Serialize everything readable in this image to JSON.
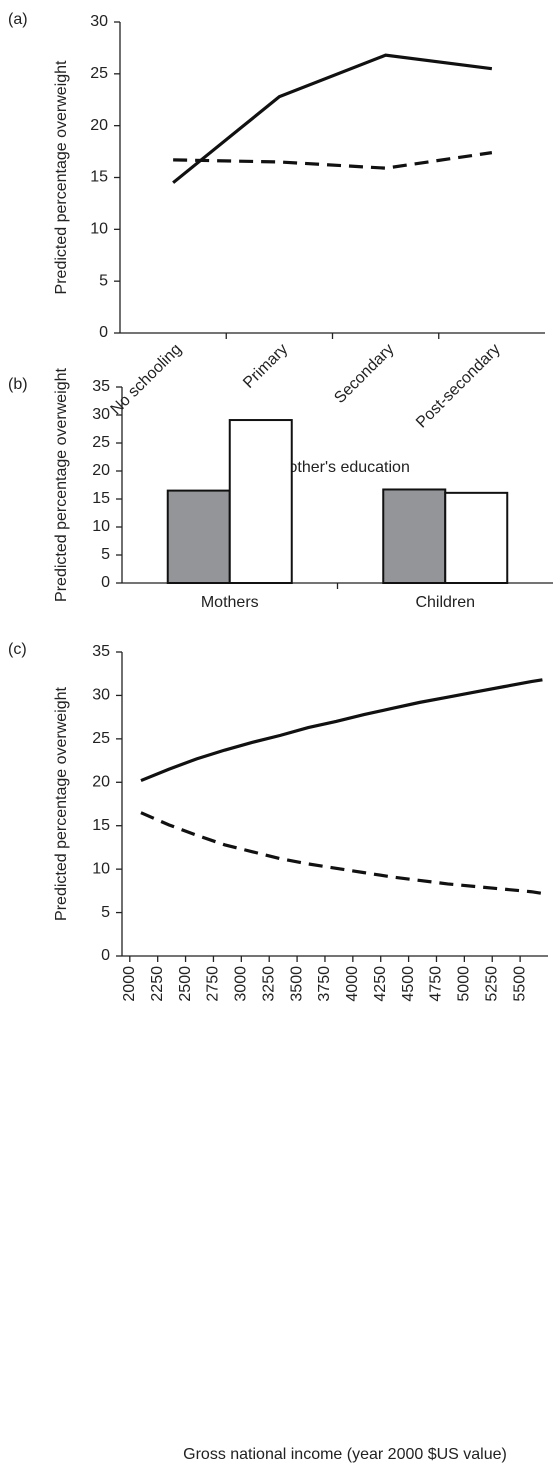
{
  "chart_data": [
    {
      "type": "line",
      "panel_label": "(a)",
      "ylabel": "Predicted percentage overweight",
      "xlabel": "Mother's education",
      "categories": [
        "No schooling",
        "Primary",
        "Secondary",
        "Post-secondary"
      ],
      "series": [
        {
          "color": "#111111",
          "dash": false,
          "values": [
            14.5,
            22.8,
            26.8,
            25.5
          ]
        },
        {
          "color": "#111111",
          "dash": true,
          "values": [
            16.7,
            16.5,
            15.9,
            17.4
          ]
        }
      ],
      "ylim": [
        0,
        30
      ],
      "yticks": [
        0,
        5,
        10,
        15,
        20,
        25,
        30
      ]
    },
    {
      "type": "bar",
      "panel_label": "(b)",
      "ylabel": "Predicted percentage overweight",
      "categories": [
        "Mothers",
        "Children"
      ],
      "series": [
        {
          "color": "#939598",
          "values": [
            16.5,
            16.7
          ]
        },
        {
          "color": "#ffffff",
          "values": [
            29.1,
            16.1
          ]
        }
      ],
      "ylim": [
        0,
        35
      ],
      "yticks": [
        0,
        5,
        10,
        15,
        20,
        25,
        30,
        35
      ]
    },
    {
      "type": "line",
      "panel_label": "(c)",
      "ylabel": "Predicted percentage overweight",
      "xlabel": "Gross national income (year 2000 $US value)",
      "x": [
        2100,
        2350,
        2600,
        2850,
        3100,
        3350,
        3600,
        3850,
        4100,
        4350,
        4600,
        4850,
        5100,
        5350,
        5600,
        5700
      ],
      "series": [
        {
          "color": "#111111",
          "dash": false,
          "values": [
            20.2,
            21.5,
            22.7,
            23.7,
            24.6,
            25.4,
            26.3,
            27.0,
            27.8,
            28.5,
            29.2,
            29.8,
            30.4,
            31.0,
            31.6,
            31.8
          ]
        },
        {
          "color": "#111111",
          "dash": true,
          "values": [
            16.5,
            15.1,
            13.9,
            12.8,
            12.0,
            11.2,
            10.6,
            10.1,
            9.6,
            9.1,
            8.7,
            8.3,
            8.0,
            7.7,
            7.4,
            7.2
          ]
        }
      ],
      "xlim": [
        1930,
        5750
      ],
      "xticks": [
        2000,
        2250,
        2500,
        2750,
        3000,
        3250,
        3500,
        3750,
        4000,
        4250,
        4500,
        4750,
        5000,
        5250,
        5500
      ],
      "ylim": [
        0,
        35
      ],
      "yticks": [
        0,
        5,
        10,
        15,
        20,
        25,
        30,
        35
      ]
    }
  ]
}
